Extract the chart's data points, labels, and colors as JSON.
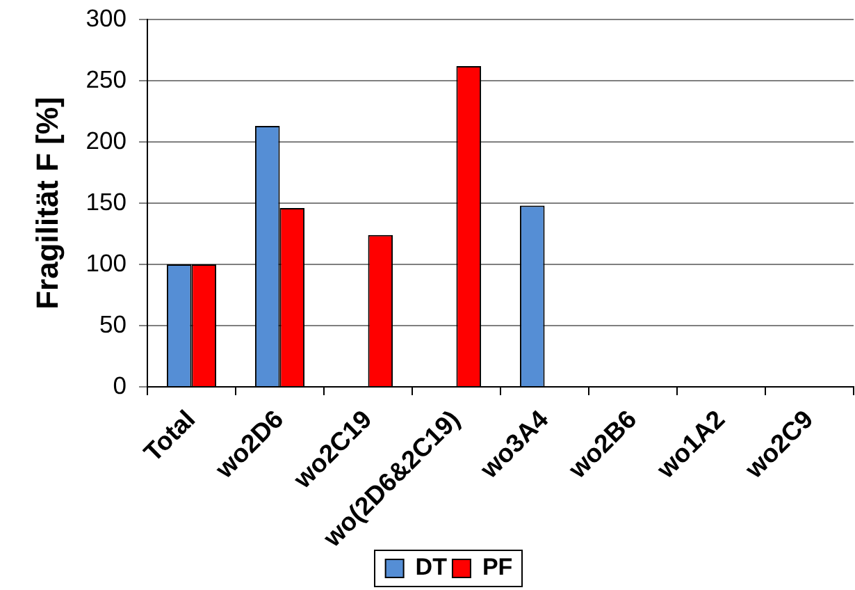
{
  "chart_data": {
    "type": "bar",
    "ylabel": "Fragilität F [%]",
    "categories": [
      "Total",
      "wo2D6",
      "wo2C19",
      "wo(2D6&2C19)",
      "wo3A4",
      "wo2B6",
      "wo1A2",
      "wo2C9"
    ],
    "series": [
      {
        "name": "DT",
        "color": "#558ed5",
        "values": [
          100,
          213,
          null,
          null,
          148,
          null,
          null,
          null
        ]
      },
      {
        "name": "PF",
        "color": "#ff0000",
        "values": [
          100,
          146,
          124,
          262,
          null,
          null,
          null,
          null
        ]
      }
    ],
    "ylim": [
      0,
      300
    ],
    "yticks": [
      0,
      50,
      100,
      150,
      200,
      250,
      300
    ],
    "grid": "y",
    "legend": "bottom"
  }
}
